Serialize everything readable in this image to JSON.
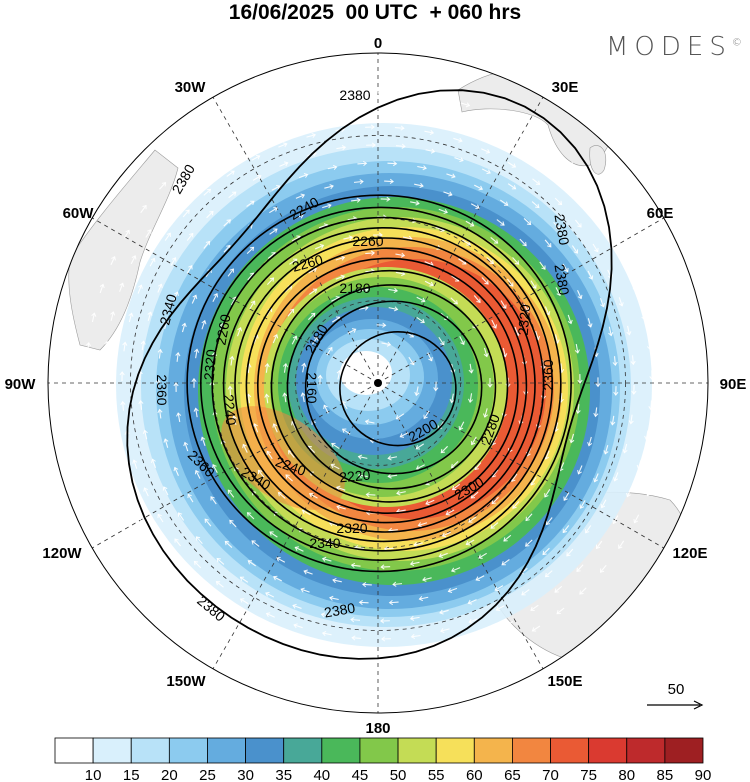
{
  "title": "16/06/2025  00 UTC  + 060 hrs",
  "brand": "MODES",
  "brand_mark": "©",
  "longitude_labels": [
    "0",
    "30E",
    "60E",
    "90E",
    "120E",
    "150E",
    "180",
    "150W",
    "120W",
    "90W",
    "60W",
    "30W"
  ],
  "contour_labels": [
    "2380",
    "2380",
    "2380",
    "2380",
    "2380",
    "2380",
    "2360",
    "2360",
    "2360",
    "2340",
    "2340",
    "2340",
    "2320",
    "2320",
    "2320",
    "2300",
    "2280",
    "2260",
    "2260",
    "2260",
    "2240",
    "2240",
    "2240",
    "2220",
    "2200",
    "2180",
    "2180",
    "2160"
  ],
  "contours": [
    {
      "value": 2380,
      "r": 300
    },
    {
      "value": 2360,
      "r": 192
    },
    {
      "value": 2340,
      "r": 180
    },
    {
      "value": 2320,
      "r": 170
    },
    {
      "value": 2300,
      "r": 160
    },
    {
      "value": 2280,
      "r": 150
    },
    {
      "value": 2260,
      "r": 140
    },
    {
      "value": 2240,
      "r": 130
    },
    {
      "value": 2220,
      "r": 118
    },
    {
      "value": 2200,
      "r": 104
    },
    {
      "value": 2180,
      "r": 88
    },
    {
      "value": 2160,
      "r": 58
    }
  ],
  "wind_scale": {
    "label": "50"
  },
  "colorbar": {
    "labels": [
      "10",
      "15",
      "20",
      "25",
      "30",
      "35",
      "40",
      "45",
      "50",
      "55",
      "60",
      "65",
      "70",
      "75",
      "80",
      "85",
      "90"
    ],
    "colors": [
      "#ffffff",
      "#d9f0fc",
      "#b8e2f8",
      "#8ccbef",
      "#64acdf",
      "#4a91cc",
      "#48a898",
      "#4ab85a",
      "#82c84a",
      "#c4dc55",
      "#f6e05a",
      "#f4b44c",
      "#f28640",
      "#ea5a34",
      "#da3a30",
      "#be2a2c",
      "#9e1f22"
    ]
  },
  "wind_colors": {
    "hatch": "#ffffff"
  },
  "icons": [
    "pole-marker-icon",
    "wind-reference-arrow-icon"
  ]
}
